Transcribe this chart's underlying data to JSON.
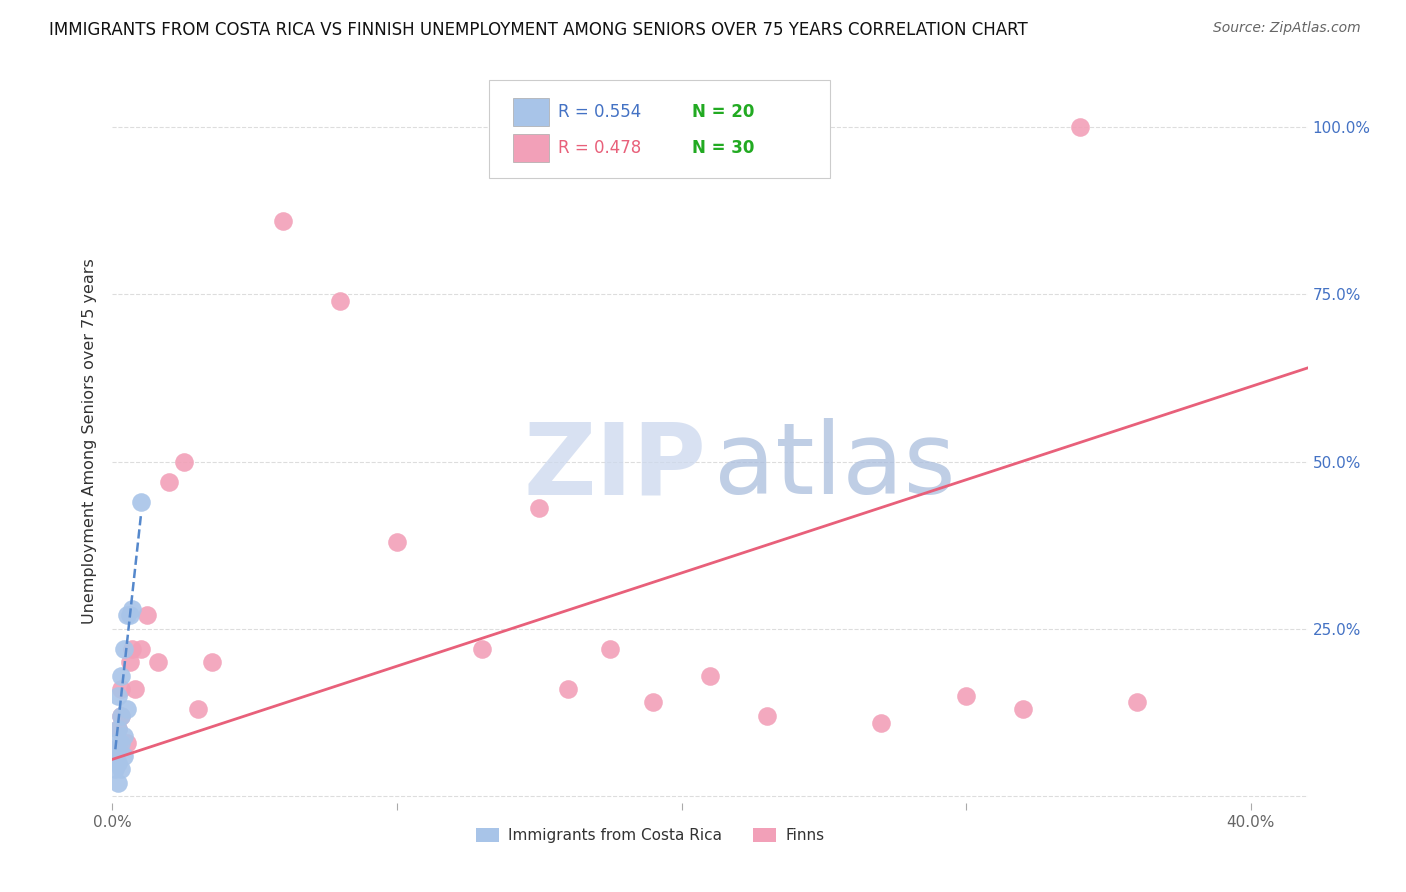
{
  "title": "IMMIGRANTS FROM COSTA RICA VS FINNISH UNEMPLOYMENT AMONG SENIORS OVER 75 YEARS CORRELATION CHART",
  "source": "Source: ZipAtlas.com",
  "ylabel": "Unemployment Among Seniors over 75 years",
  "xlim": [
    0.0,
    0.42
  ],
  "ylim": [
    -0.01,
    1.07
  ],
  "legend_blue_r": "0.554",
  "legend_blue_n": "20",
  "legend_pink_r": "0.478",
  "legend_pink_n": "30",
  "legend_label_blue": "Immigrants from Costa Rica",
  "legend_label_pink": "Finns",
  "blue_color": "#a8c4e8",
  "pink_color": "#f2a0b8",
  "blue_line_color": "#5588cc",
  "pink_line_color": "#e8607a",
  "r_color": "#4472c4",
  "n_color": "#22aa22",
  "right_axis_color": "#4472c4",
  "blue_scatter_x": [
    0.001,
    0.001,
    0.001,
    0.002,
    0.002,
    0.002,
    0.002,
    0.002,
    0.003,
    0.003,
    0.003,
    0.003,
    0.004,
    0.004,
    0.004,
    0.005,
    0.005,
    0.006,
    0.007,
    0.01
  ],
  "blue_scatter_y": [
    0.04,
    0.06,
    0.08,
    0.02,
    0.05,
    0.07,
    0.1,
    0.15,
    0.04,
    0.08,
    0.12,
    0.18,
    0.06,
    0.09,
    0.22,
    0.13,
    0.27,
    0.27,
    0.28,
    0.44
  ],
  "pink_scatter_x": [
    0.001,
    0.002,
    0.003,
    0.003,
    0.005,
    0.006,
    0.007,
    0.008,
    0.01,
    0.012,
    0.016,
    0.02,
    0.025,
    0.03,
    0.035,
    0.06,
    0.08,
    0.1,
    0.13,
    0.15,
    0.16,
    0.175,
    0.19,
    0.21,
    0.23,
    0.27,
    0.3,
    0.32,
    0.34,
    0.36
  ],
  "pink_scatter_y": [
    0.07,
    0.1,
    0.12,
    0.16,
    0.08,
    0.2,
    0.22,
    0.16,
    0.22,
    0.27,
    0.2,
    0.47,
    0.5,
    0.13,
    0.2,
    0.86,
    0.74,
    0.38,
    0.22,
    0.43,
    0.16,
    0.22,
    0.14,
    0.18,
    0.12,
    0.11,
    0.15,
    0.13,
    1.0,
    0.14
  ],
  "blue_trend_x": [
    0.001,
    0.01
  ],
  "blue_trend_y": [
    0.07,
    0.42
  ],
  "pink_trend_x": [
    0.0,
    0.42
  ],
  "pink_trend_y": [
    0.055,
    0.64
  ],
  "ytick_vals": [
    0.0,
    0.25,
    0.5,
    0.75,
    1.0
  ],
  "ytick_labels_right": [
    "",
    "25.0%",
    "50.0%",
    "75.0%",
    "100.0%"
  ],
  "xtick_vals": [
    0.0,
    0.1,
    0.2,
    0.3,
    0.4
  ],
  "xtick_labels": [
    "0.0%",
    "",
    "",
    "",
    "40.0%"
  ],
  "background_color": "#ffffff",
  "grid_color": "#dddddd",
  "watermark_zip_color": "#ccd8ee",
  "watermark_atlas_color": "#aabedd"
}
